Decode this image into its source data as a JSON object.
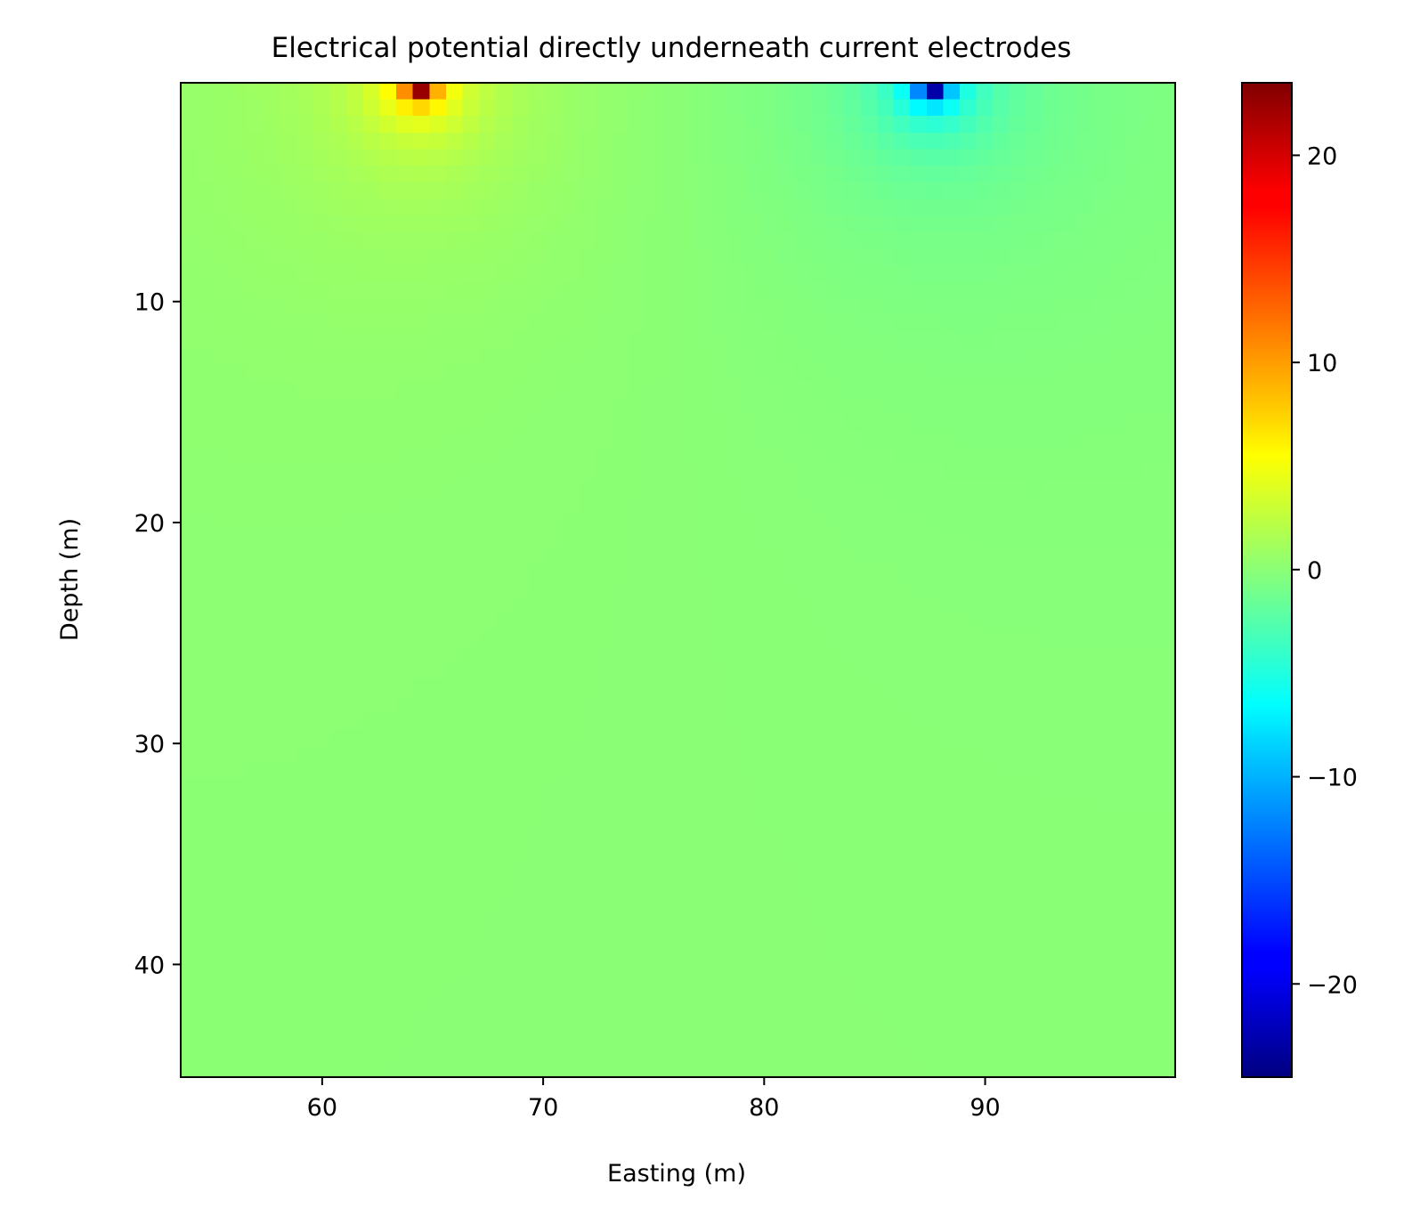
{
  "chart_data": {
    "type": "heatmap",
    "title": "Electrical potential directly underneath current electrodes",
    "xlabel": "Easting (m)",
    "ylabel": "Depth (m)",
    "xlim": [
      53.6,
      98.6
    ],
    "ylim": [
      0.1,
      45.1
    ],
    "y_inverted": true,
    "colormap": "jet",
    "xticks": [
      60,
      70,
      80,
      90
    ],
    "xtick_labels": [
      "60",
      "70",
      "80",
      "90"
    ],
    "yticks": [
      10,
      20,
      30,
      40
    ],
    "ytick_labels": [
      "10",
      "20",
      "30",
      "40"
    ],
    "colorbar": {
      "vmin": -24.5,
      "vmax": 23.5,
      "ticks": [
        20,
        10,
        0,
        -10,
        -20
      ],
      "tick_labels": [
        "20",
        "10",
        "0",
        "−10",
        "−20"
      ]
    },
    "sources": [
      {
        "name": "positive current electrode",
        "easting": 64.4,
        "depth": 0.1,
        "peak_value": 23.5
      },
      {
        "name": "negative current electrode",
        "easting": 87.6,
        "depth": 0.1,
        "peak_value": -24.5
      }
    ],
    "grid_cell_size_m": 0.75
  }
}
